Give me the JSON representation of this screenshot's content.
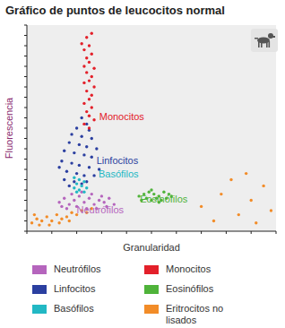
{
  "chart_data": {
    "type": "scatter",
    "title": "Gráfico de puntos de leucocitos normal",
    "x_label": "Granularidad",
    "y_label": "Fluorescencia",
    "xlim": [
      0,
      100
    ],
    "ylim": [
      0,
      100
    ],
    "xticks": [
      0,
      10,
      20,
      30,
      40,
      50,
      60,
      70,
      80,
      90,
      100
    ],
    "yticks": [
      0,
      5,
      10,
      15,
      20,
      25,
      30,
      35,
      40,
      45,
      50,
      55,
      60,
      65,
      70,
      75,
      80,
      85,
      90,
      95,
      100
    ],
    "tick_labels": false,
    "grid": false,
    "legend": "bottom",
    "marker": "circle",
    "annotations": [
      "Monocitos",
      "Linfocitos",
      "Basófilos",
      "Eosinófilos",
      "Neutrófilos"
    ],
    "series": [
      {
        "name": "Neutrófilos",
        "color": "#b565bd",
        "x": [
          13,
          15,
          17,
          19,
          21,
          23,
          25,
          27,
          29,
          31,
          33,
          35,
          16,
          20,
          24,
          28,
          32,
          18,
          22,
          26,
          30,
          14
        ],
        "values": [
          14,
          16,
          13,
          15,
          17,
          14,
          16,
          13,
          15,
          14,
          16,
          13,
          11,
          12,
          11,
          11,
          12,
          18,
          19,
          18,
          17,
          12
        ]
      },
      {
        "name": "Linfocitos",
        "color": "#2b3fa0",
        "x": [
          22,
          24,
          20,
          25,
          18,
          22,
          26,
          17,
          21,
          24,
          28,
          15,
          19,
          23,
          26,
          14,
          18,
          21,
          25,
          29,
          16,
          20,
          23,
          27,
          15,
          19,
          24,
          17,
          22,
          13
        ],
        "values": [
          55,
          52,
          50,
          49,
          47,
          46,
          45,
          43,
          42,
          41,
          40,
          39,
          38,
          37,
          36,
          34,
          33,
          32,
          31,
          30,
          29,
          28,
          27,
          27,
          25,
          24,
          24,
          22,
          23,
          31
        ]
      },
      {
        "name": "Basófilos",
        "color": "#22b8c4",
        "x": [
          19,
          21,
          23,
          20,
          22,
          24,
          19,
          21,
          23,
          20
        ],
        "values": [
          26,
          25,
          24,
          23,
          22,
          21,
          21,
          20,
          19,
          19
        ]
      },
      {
        "name": "Monocitos",
        "color": "#e3202a",
        "x": [
          24,
          25,
          23,
          26,
          24,
          25,
          23,
          27,
          24,
          26,
          25,
          23,
          27,
          24,
          26,
          25,
          23,
          26,
          24,
          25,
          27,
          23,
          25,
          22,
          26
        ],
        "values": [
          94,
          90,
          88,
          86,
          84,
          82,
          80,
          79,
          77,
          75,
          73,
          72,
          70,
          68,
          66,
          64,
          62,
          60,
          58,
          56,
          54,
          52,
          50,
          91,
          96
        ]
      },
      {
        "name": "Eosinófilos",
        "color": "#4fb33a",
        "x": [
          45,
          47,
          49,
          51,
          53,
          55,
          57,
          48,
          50,
          52,
          54,
          56,
          58,
          46,
          50,
          53
        ],
        "values": [
          17,
          18,
          19,
          18,
          17,
          19,
          18,
          16,
          15,
          16,
          15,
          16,
          17,
          15,
          20,
          14
        ]
      },
      {
        "name": "Eritrocitos no lisados",
        "color": "#f28c28",
        "x": [
          2,
          4,
          6,
          8,
          10,
          12,
          14,
          16,
          18,
          20,
          22,
          5,
          9,
          13,
          17,
          24,
          26,
          3,
          70,
          78,
          85,
          90,
          95,
          98,
          82,
          75,
          92,
          88
        ],
        "values": [
          4,
          6,
          5,
          7,
          5,
          8,
          6,
          7,
          9,
          8,
          10,
          3,
          3,
          4,
          5,
          9,
          11,
          8,
          12,
          18,
          8,
          15,
          22,
          10,
          25,
          5,
          4,
          28
        ]
      }
    ]
  }
}
